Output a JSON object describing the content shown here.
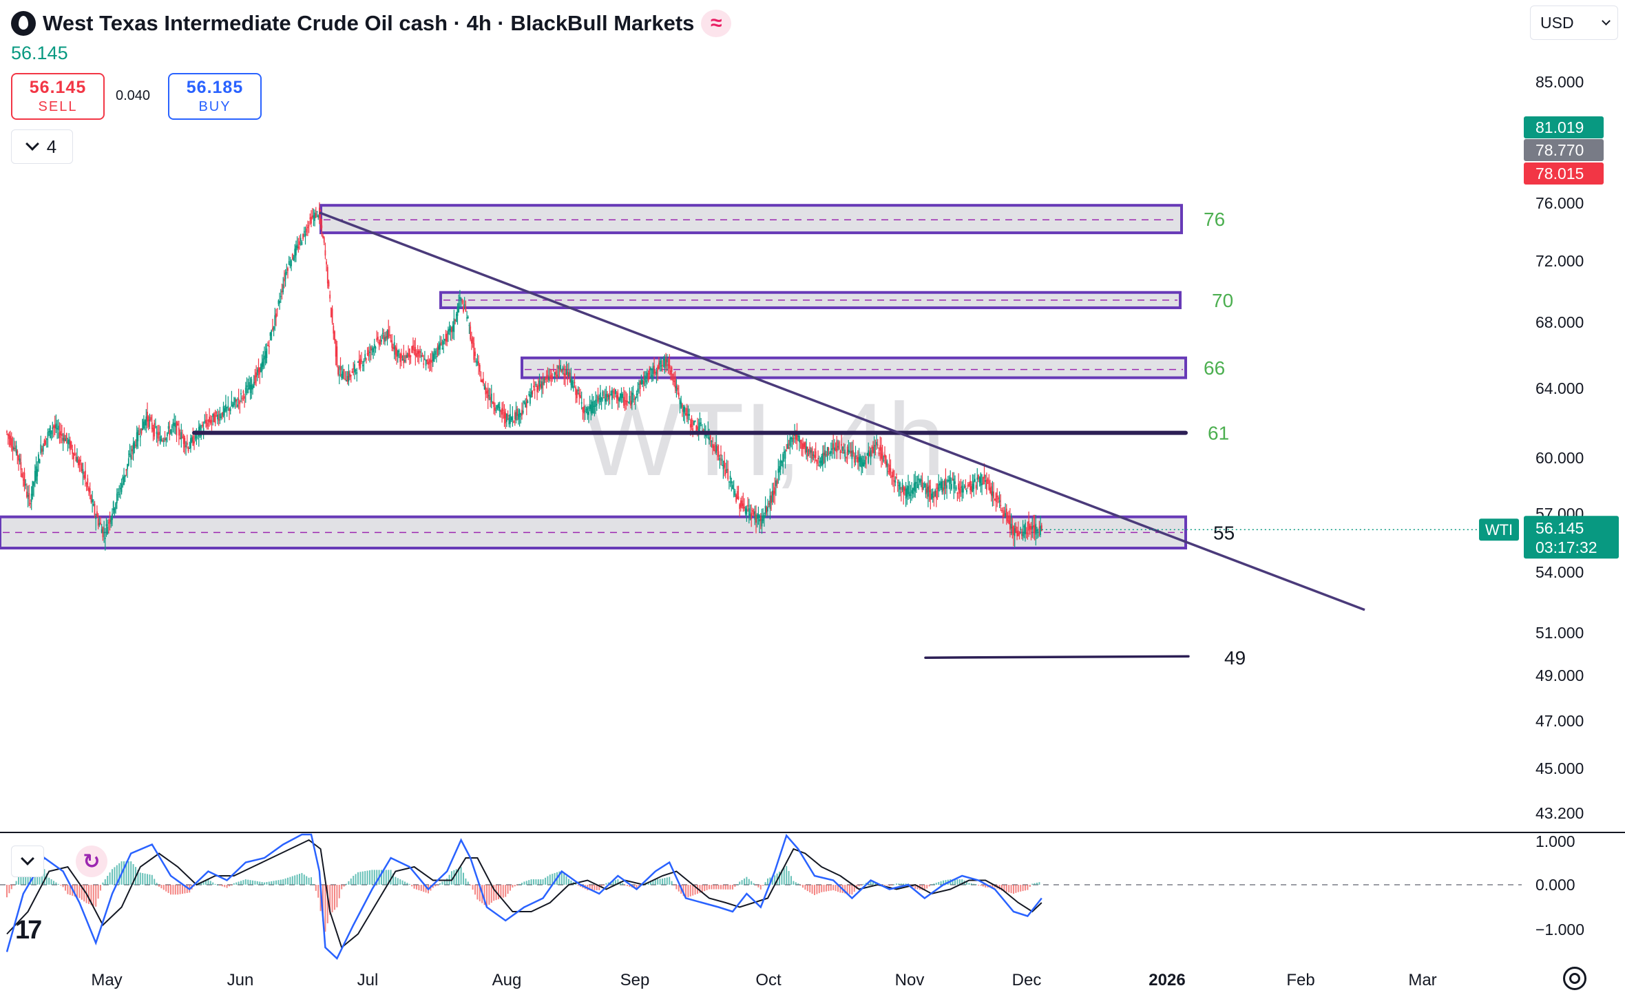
{
  "header": {
    "title": "West Texas Intermediate Crude Oil cash · 4h · BlackBull Markets",
    "last_price": "56.145",
    "sell": {
      "price": "56.145",
      "label": "SELL"
    },
    "spread": "0.040",
    "buy": {
      "price": "56.185",
      "label": "BUY"
    },
    "indicator_count": "4",
    "currency": "USD",
    "icons": {
      "symbol": "oil-drop-icon",
      "badge": "wave-icon",
      "collapse": "chevron-down-icon",
      "refresh": "refresh-icon",
      "logo": "tradingview-logo-icon",
      "settings": "settings-icon"
    }
  },
  "watermark": "WTI, 4h",
  "logo_text": "17",
  "colors": {
    "up": "#089981",
    "down": "#f23645",
    "zone_border": "#673ab7",
    "zone_fill": "#dcdce0",
    "line": "#4a3a7a",
    "level_label": "#4caf50",
    "osc_fast": "#2962ff",
    "osc_slow": "#131722"
  },
  "chart_data": [
    {
      "type": "candlestick",
      "ticker": "WTI",
      "timeframe": "4h",
      "y_axis_ticks": [
        "85.000",
        "76.000",
        "72.000",
        "68.000",
        "64.000",
        "60.000",
        "57.000",
        "54.000",
        "51.000",
        "49.000",
        "47.000",
        "45.000",
        "43.200"
      ],
      "ylim": [
        43.2,
        85
      ],
      "x_axis_ticks": [
        "May",
        "Jun",
        "Jul",
        "Aug",
        "Sep",
        "Oct",
        "Nov",
        "Dec",
        "2026",
        "Feb",
        "Mar"
      ],
      "price_trace": [
        [
          0,
          61.5
        ],
        [
          0.5,
          60.2
        ],
        [
          1,
          57.5
        ],
        [
          1.5,
          60.5
        ],
        [
          2,
          61.8
        ],
        [
          2.6,
          61.0
        ],
        [
          3.3,
          59.2
        ],
        [
          3.8,
          57.0
        ],
        [
          4.2,
          55.9
        ],
        [
          4.8,
          58.0
        ],
        [
          5.5,
          60.8
        ],
        [
          6.0,
          62.3
        ],
        [
          6.6,
          61.0
        ],
        [
          7.2,
          61.8
        ],
        [
          7.8,
          60.6
        ],
        [
          8.5,
          61.9
        ],
        [
          9.2,
          62.5
        ],
        [
          9.9,
          63.2
        ],
        [
          10.5,
          64.2
        ],
        [
          11.0,
          65.5
        ],
        [
          11.5,
          68.2
        ],
        [
          12.0,
          71.5
        ],
        [
          12.5,
          73.0
        ],
        [
          13.0,
          74.8
        ],
        [
          13.35,
          75.3
        ],
        [
          13.6,
          73.0
        ],
        [
          13.9,
          68.5
        ],
        [
          14.2,
          65.0
        ],
        [
          14.6,
          64.6
        ],
        [
          15.2,
          65.6
        ],
        [
          15.8,
          66.7
        ],
        [
          16.3,
          67.2
        ],
        [
          16.9,
          65.7
        ],
        [
          17.4,
          66.3
        ],
        [
          18.0,
          65.4
        ],
        [
          18.6,
          66.6
        ],
        [
          19.1,
          67.6
        ],
        [
          19.4,
          69.5
        ],
        [
          19.7,
          68.4
        ],
        [
          20.0,
          66.0
        ],
        [
          20.4,
          64.1
        ],
        [
          20.9,
          63.0
        ],
        [
          21.4,
          62.2
        ],
        [
          22.0,
          62.6
        ],
        [
          22.6,
          64.0
        ],
        [
          23.2,
          64.6
        ],
        [
          23.8,
          65.2
        ],
        [
          24.3,
          64.0
        ],
        [
          24.8,
          62.5
        ],
        [
          25.4,
          63.4
        ],
        [
          26.0,
          63.6
        ],
        [
          26.6,
          63.1
        ],
        [
          27.2,
          64.4
        ],
        [
          27.8,
          65.2
        ],
        [
          28.3,
          65.6
        ],
        [
          28.8,
          63.1
        ],
        [
          29.3,
          61.9
        ],
        [
          29.8,
          61.6
        ],
        [
          30.3,
          60.6
        ],
        [
          30.8,
          59.1
        ],
        [
          31.3,
          57.6
        ],
        [
          31.8,
          57.0
        ],
        [
          32.3,
          56.6
        ],
        [
          32.8,
          58.1
        ],
        [
          33.3,
          60.5
        ],
        [
          33.7,
          61.3
        ],
        [
          34.2,
          60.4
        ],
        [
          34.8,
          59.8
        ],
        [
          35.4,
          60.7
        ],
        [
          36.0,
          60.2
        ],
        [
          36.6,
          59.7
        ],
        [
          37.2,
          60.7
        ],
        [
          37.8,
          59.2
        ],
        [
          38.4,
          58.1
        ],
        [
          39.0,
          58.6
        ],
        [
          39.6,
          57.9
        ],
        [
          40.2,
          58.7
        ],
        [
          40.8,
          58.3
        ],
        [
          41.3,
          58.5
        ],
        [
          41.7,
          58.9
        ],
        [
          42.2,
          57.9
        ],
        [
          42.7,
          56.9
        ],
        [
          43.2,
          55.8
        ],
        [
          43.7,
          56.3
        ],
        [
          44.2,
          56.1
        ]
      ],
      "current_price": {
        "label": "WTI",
        "value": "56.145",
        "countdown": "03:17:32"
      },
      "axis_badges": [
        {
          "value": "81.019",
          "color": "#089981"
        },
        {
          "value": "78.770",
          "color": "#787b86"
        },
        {
          "value": "78.015",
          "color": "#f23645"
        }
      ],
      "zones": [
        {
          "label": "76",
          "low": 73.9,
          "high": 75.8,
          "mid": 74.8
        },
        {
          "label": "70",
          "low": 68.9,
          "high": 69.9,
          "mid": 69.4
        },
        {
          "label": "66",
          "low": 64.6,
          "high": 65.8,
          "mid": 65.1
        },
        {
          "label": "55",
          "low": 55.2,
          "high": 56.8,
          "mid": 56.0
        }
      ],
      "levels": [
        {
          "label": "61",
          "value": 61.4
        },
        {
          "label": "49",
          "value": 49.8
        }
      ],
      "trendline": {
        "from": [
          13.35,
          75.3
        ],
        "to": [
          58.0,
          52.1
        ]
      }
    },
    {
      "type": "oscillator",
      "y_axis_ticks": [
        "1.000",
        "0.000",
        "−1.000"
      ],
      "ylim": [
        -1.7,
        1.2
      ],
      "zero_line": 0.0,
      "fast_trace": [
        [
          0,
          -1.5
        ],
        [
          0.7,
          -0.2
        ],
        [
          1.6,
          0.6
        ],
        [
          2.4,
          0.3
        ],
        [
          3.1,
          -0.4
        ],
        [
          3.8,
          -1.3
        ],
        [
          4.5,
          -0.2
        ],
        [
          5.3,
          0.7
        ],
        [
          6.2,
          0.9
        ],
        [
          7.0,
          0.2
        ],
        [
          7.8,
          -0.1
        ],
        [
          8.6,
          0.3
        ],
        [
          9.4,
          0.1
        ],
        [
          10.2,
          0.5
        ],
        [
          11.0,
          0.6
        ],
        [
          11.8,
          0.9
        ],
        [
          12.6,
          1.3
        ],
        [
          13.0,
          1.2
        ],
        [
          13.35,
          0.3
        ],
        [
          13.6,
          -1.4
        ],
        [
          14.1,
          -1.8
        ],
        [
          14.8,
          -0.9
        ],
        [
          15.6,
          -0.1
        ],
        [
          16.4,
          0.6
        ],
        [
          17.2,
          0.4
        ],
        [
          18.0,
          -0.1
        ],
        [
          18.8,
          0.3
        ],
        [
          19.4,
          1.0
        ],
        [
          19.8,
          0.6
        ],
        [
          20.5,
          -0.5
        ],
        [
          21.3,
          -0.8
        ],
        [
          22.1,
          -0.5
        ],
        [
          22.9,
          -0.3
        ],
        [
          23.7,
          0.3
        ],
        [
          24.5,
          0.0
        ],
        [
          25.3,
          -0.2
        ],
        [
          26.1,
          0.2
        ],
        [
          26.9,
          -0.1
        ],
        [
          27.7,
          0.3
        ],
        [
          28.3,
          0.5
        ],
        [
          29.0,
          -0.3
        ],
        [
          29.7,
          -0.4
        ],
        [
          30.4,
          -0.5
        ],
        [
          31.0,
          -0.6
        ],
        [
          31.6,
          -0.2
        ],
        [
          32.2,
          -0.5
        ],
        [
          32.8,
          0.3
        ],
        [
          33.3,
          1.1
        ],
        [
          33.8,
          0.8
        ],
        [
          34.5,
          0.2
        ],
        [
          35.3,
          0.1
        ],
        [
          36.1,
          -0.3
        ],
        [
          36.9,
          0.1
        ],
        [
          37.7,
          -0.1
        ],
        [
          38.5,
          0.0
        ],
        [
          39.2,
          -0.3
        ],
        [
          40.0,
          0.0
        ],
        [
          40.8,
          0.2
        ],
        [
          41.5,
          0.1
        ],
        [
          42.2,
          -0.1
        ],
        [
          43.0,
          -0.6
        ],
        [
          43.6,
          -0.7
        ],
        [
          44.2,
          -0.3
        ]
      ],
      "slow_trace": [
        [
          0,
          -1.1
        ],
        [
          0.9,
          -0.6
        ],
        [
          1.8,
          0.3
        ],
        [
          2.6,
          0.4
        ],
        [
          3.4,
          -0.2
        ],
        [
          4.1,
          -0.9
        ],
        [
          4.9,
          -0.5
        ],
        [
          5.7,
          0.4
        ],
        [
          6.5,
          0.7
        ],
        [
          7.3,
          0.4
        ],
        [
          8.1,
          0.0
        ],
        [
          8.9,
          0.2
        ],
        [
          9.7,
          0.2
        ],
        [
          10.5,
          0.4
        ],
        [
          11.3,
          0.6
        ],
        [
          12.1,
          0.8
        ],
        [
          12.9,
          1.0
        ],
        [
          13.4,
          0.8
        ],
        [
          13.8,
          -0.6
        ],
        [
          14.3,
          -1.4
        ],
        [
          15.0,
          -1.1
        ],
        [
          15.8,
          -0.4
        ],
        [
          16.6,
          0.3
        ],
        [
          17.4,
          0.4
        ],
        [
          18.2,
          0.1
        ],
        [
          19.0,
          0.1
        ],
        [
          19.6,
          0.6
        ],
        [
          20.1,
          0.6
        ],
        [
          20.8,
          -0.1
        ],
        [
          21.6,
          -0.6
        ],
        [
          22.4,
          -0.6
        ],
        [
          23.2,
          -0.4
        ],
        [
          24.0,
          0.0
        ],
        [
          24.8,
          0.1
        ],
        [
          25.6,
          -0.1
        ],
        [
          26.4,
          0.1
        ],
        [
          27.2,
          0.0
        ],
        [
          28.0,
          0.2
        ],
        [
          28.6,
          0.3
        ],
        [
          29.3,
          0.0
        ],
        [
          30.0,
          -0.3
        ],
        [
          30.7,
          -0.4
        ],
        [
          31.3,
          -0.5
        ],
        [
          31.9,
          -0.4
        ],
        [
          32.5,
          -0.3
        ],
        [
          33.1,
          0.3
        ],
        [
          33.6,
          0.8
        ],
        [
          34.1,
          0.7
        ],
        [
          34.8,
          0.4
        ],
        [
          35.6,
          0.2
        ],
        [
          36.4,
          -0.1
        ],
        [
          37.2,
          0.0
        ],
        [
          38.0,
          -0.1
        ],
        [
          38.8,
          0.0
        ],
        [
          39.5,
          -0.2
        ],
        [
          40.3,
          -0.1
        ],
        [
          41.1,
          0.1
        ],
        [
          41.8,
          0.1
        ],
        [
          42.5,
          -0.1
        ],
        [
          43.2,
          -0.4
        ],
        [
          43.8,
          -0.6
        ],
        [
          44.2,
          -0.4
        ]
      ]
    }
  ]
}
